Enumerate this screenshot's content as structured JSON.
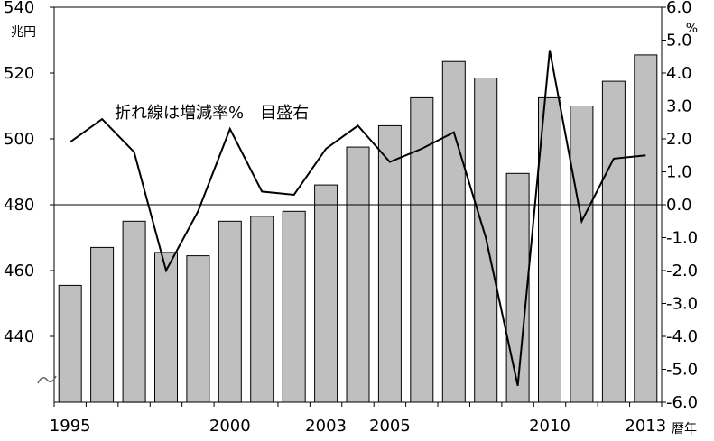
{
  "chart_data": {
    "type": "bar",
    "title": "",
    "x": [
      1995,
      1996,
      1997,
      1998,
      1999,
      2000,
      2001,
      2002,
      2003,
      2004,
      2005,
      2006,
      2007,
      2008,
      2009,
      2010,
      2011,
      2012,
      2013
    ],
    "x_tick_labels": [
      "1995",
      "2000",
      "2003",
      "2005",
      "2010",
      "2013"
    ],
    "x_tick_values": [
      1995,
      2000,
      2003,
      2005,
      2010,
      2013
    ],
    "xlabel": "暦年",
    "y_left": {
      "unit": "兆円",
      "tick_labels": [
        "440",
        "460",
        "480",
        "500",
        "520",
        "540"
      ],
      "tick_values": [
        440,
        460,
        480,
        500,
        520,
        540
      ],
      "range": [
        420,
        540
      ]
    },
    "y_right": {
      "unit": "%",
      "tick_labels": [
        "-6.0",
        "-5.0",
        "-4.0",
        "-3.0",
        "-2.0",
        "-1.0",
        "0.0",
        "1.0",
        "2.0",
        "3.0",
        "4.0",
        "5.0",
        "6.0"
      ],
      "tick_values": [
        -6,
        -5,
        -4,
        -3,
        -2,
        -1,
        0,
        1,
        2,
        3,
        4,
        5,
        6
      ],
      "range": [
        -6,
        6
      ]
    },
    "series": [
      {
        "kind": "bar",
        "axis": "left",
        "color": "#bfbfbf",
        "values": [
          455.5,
          467.0,
          475.0,
          465.5,
          464.5,
          475.0,
          476.5,
          478.0,
          486.0,
          497.5,
          504.0,
          512.5,
          523.5,
          518.5,
          489.5,
          512.5,
          510.0,
          517.5,
          525.5
        ]
      },
      {
        "kind": "line",
        "axis": "right",
        "color": "#000000",
        "values": [
          1.9,
          2.6,
          1.6,
          -2.0,
          -0.2,
          2.3,
          0.4,
          0.3,
          1.7,
          2.4,
          1.3,
          1.7,
          2.2,
          -1.0,
          -5.5,
          4.7,
          -0.5,
          1.4,
          1.5
        ]
      }
    ],
    "zero_line": true,
    "annotation": "折れ線は増減率%　目盛右"
  }
}
